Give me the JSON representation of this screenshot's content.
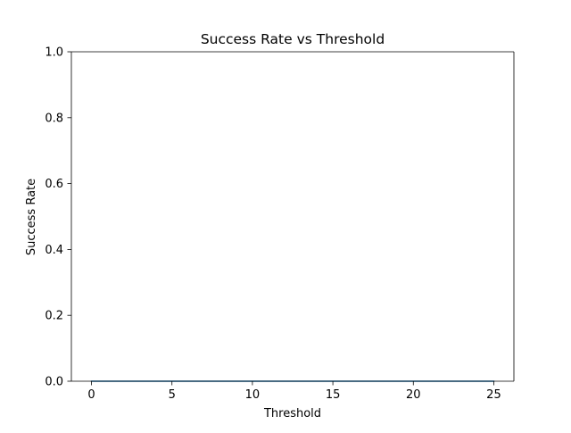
{
  "chart_data": {
    "type": "line",
    "title": "Success Rate vs Threshold",
    "xlabel": "Threshold",
    "ylabel": "Success Rate",
    "xlim": [
      -1.25,
      26.25
    ],
    "ylim": [
      0,
      1.0
    ],
    "xticks": [
      0,
      5,
      10,
      15,
      20,
      25
    ],
    "xtick_labels": [
      "0",
      "5",
      "10",
      "15",
      "20",
      "25"
    ],
    "yticks": [
      0.0,
      0.2,
      0.4,
      0.6,
      0.8,
      1.0
    ],
    "ytick_labels": [
      "0.0",
      "0.2",
      "0.4",
      "0.6",
      "0.8",
      "1.0"
    ],
    "grid": false,
    "series": [
      {
        "color": "#1f77b4",
        "x": [
          0,
          1,
          2,
          3,
          4,
          5,
          6,
          7,
          8,
          9,
          10,
          11,
          12,
          13,
          14,
          15,
          16,
          17,
          18,
          19,
          20,
          21,
          22,
          23,
          24,
          25
        ],
        "y": [
          0,
          0,
          0,
          0,
          0,
          0,
          0,
          0,
          0,
          0,
          0,
          0,
          0,
          0,
          0,
          0,
          0,
          0,
          0,
          0,
          0,
          0,
          0,
          0,
          0,
          0
        ]
      }
    ]
  }
}
